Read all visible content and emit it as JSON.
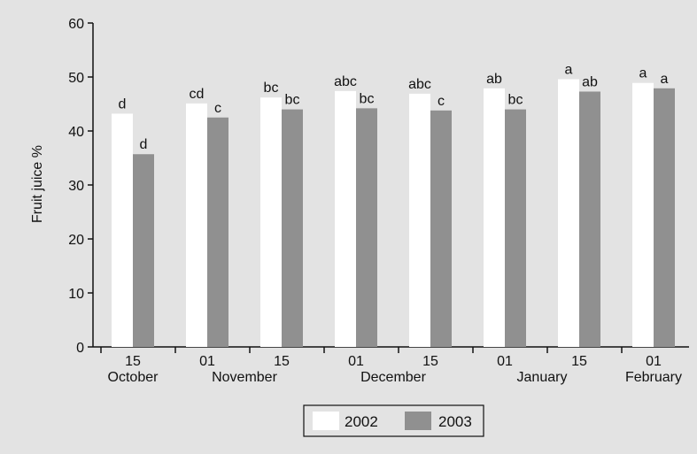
{
  "chart_data": {
    "type": "bar",
    "ylabel": "Fruit juice %",
    "ylim": [
      0,
      60
    ],
    "yticks": [
      0,
      10,
      20,
      30,
      40,
      50,
      60
    ],
    "categories": [
      "15",
      "01",
      "15",
      "01",
      "15",
      "01",
      "15",
      "01"
    ],
    "month_labels": [
      {
        "label": "October",
        "start": 0,
        "end": 0
      },
      {
        "label": "November",
        "start": 1,
        "end": 2
      },
      {
        "label": "December",
        "start": 3,
        "end": 4
      },
      {
        "label": "January",
        "start": 5,
        "end": 6
      },
      {
        "label": "February",
        "start": 7,
        "end": 7
      }
    ],
    "series": [
      {
        "name": "2002",
        "color": "#ffffff",
        "values": [
          43.2,
          45.1,
          46.2,
          47.4,
          46.9,
          47.9,
          49.6,
          48.9
        ],
        "labels": [
          "d",
          "cd",
          "bc",
          "abc",
          "abc",
          "ab",
          "a",
          "a"
        ]
      },
      {
        "name": "2003",
        "color": "#909090",
        "values": [
          35.7,
          42.5,
          44.0,
          44.2,
          43.8,
          44.0,
          47.3,
          47.9
        ],
        "labels": [
          "d",
          "c",
          "bc",
          "bc",
          "c",
          "bc",
          "ab",
          "a"
        ]
      }
    ],
    "legend_position": "bottom-center",
    "background_color": "#e3e3e3",
    "grid": false
  }
}
